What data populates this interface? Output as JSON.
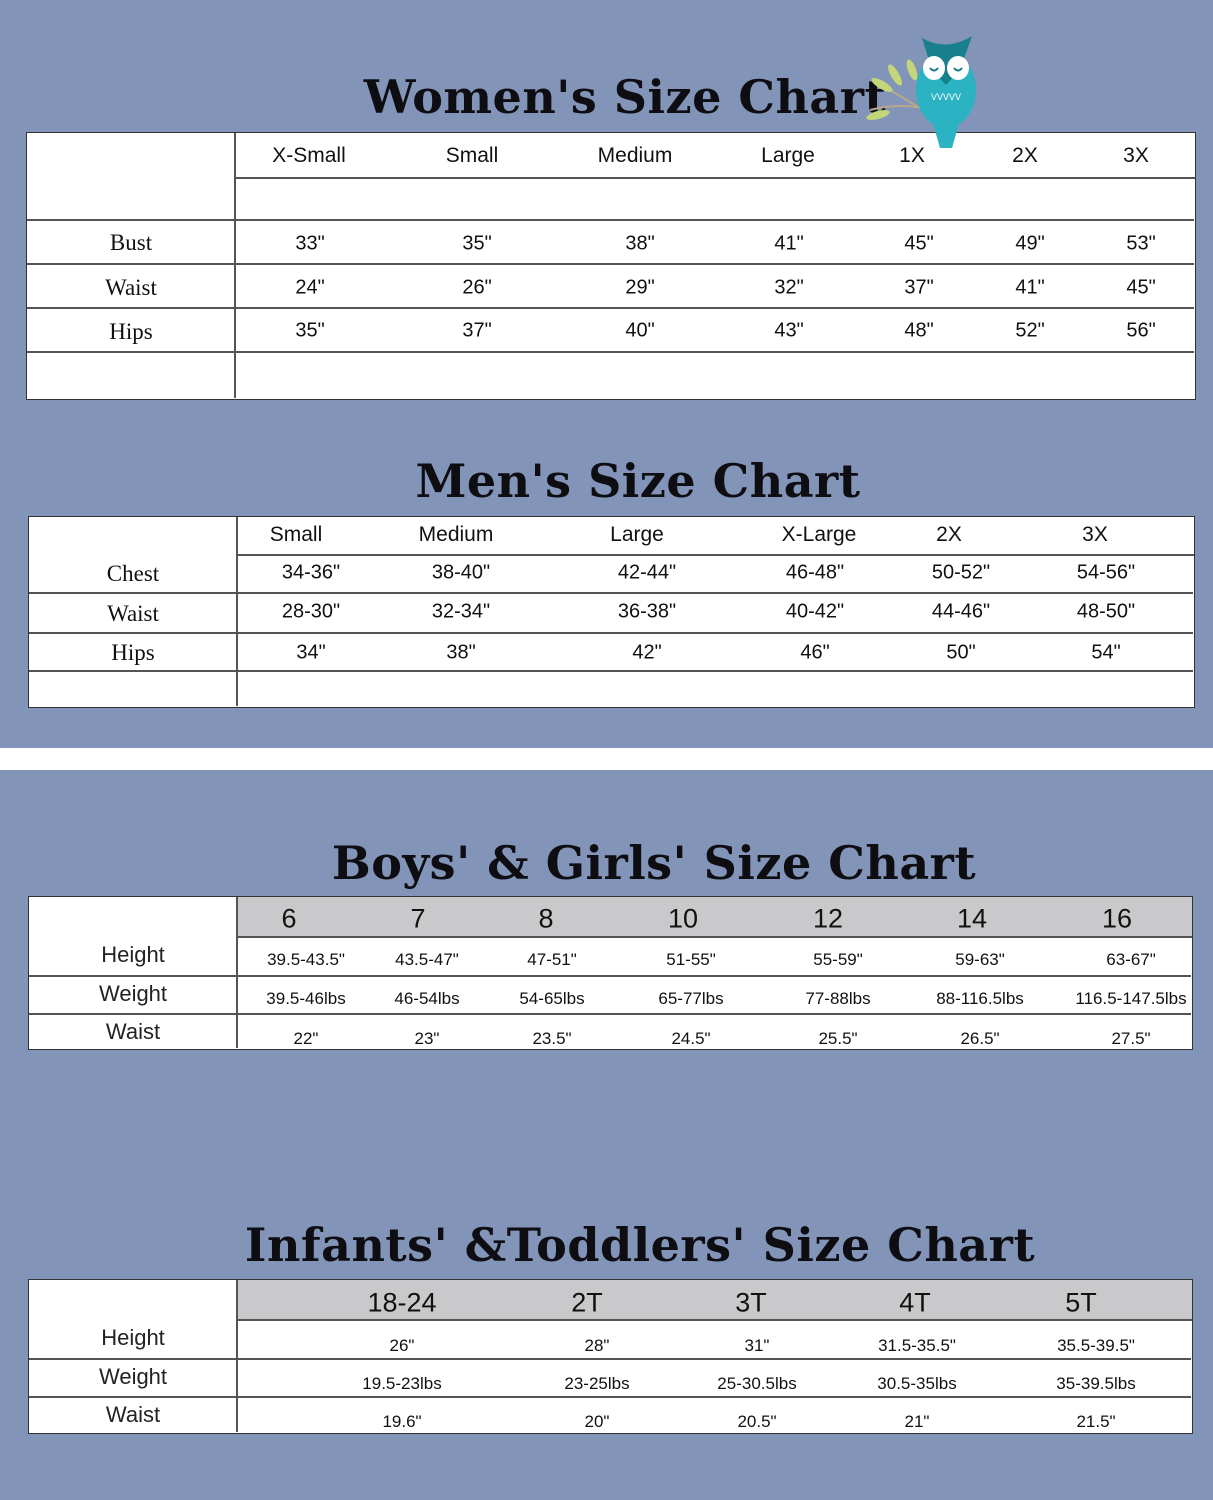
{
  "women": {
    "title": "Women's Size Chart",
    "logo": "owl-on-branch",
    "columns": [
      "X-Small",
      "Small",
      "Medium",
      "Large",
      "1X",
      "2X",
      "3X"
    ],
    "rows": [
      {
        "label": "Bust",
        "values": [
          "33\"",
          "35\"",
          "38\"",
          "41\"",
          "45\"",
          "49\"",
          "53\""
        ]
      },
      {
        "label": "Waist",
        "values": [
          "24\"",
          "26\"",
          "29\"",
          "32\"",
          "37\"",
          "41\"",
          "45\""
        ]
      },
      {
        "label": "Hips",
        "values": [
          "35\"",
          "37\"",
          "40\"",
          "43\"",
          "48\"",
          "52\"",
          "56\""
        ]
      }
    ]
  },
  "men": {
    "title": "Men's Size Chart",
    "columns": [
      "Small",
      "Medium",
      "Large",
      "X-Large",
      "2X",
      "3X"
    ],
    "rows": [
      {
        "label": "Chest",
        "values": [
          "34-36\"",
          "38-40\"",
          "42-44\"",
          "46-48\"",
          "50-52\"",
          "54-56\""
        ]
      },
      {
        "label": "Waist",
        "values": [
          "28-30\"",
          "32-34\"",
          "36-38\"",
          "40-42\"",
          "44-46\"",
          "48-50\""
        ]
      },
      {
        "label": "Hips",
        "values": [
          "34\"",
          "38\"",
          "42\"",
          "46\"",
          "50\"",
          "54\""
        ]
      }
    ]
  },
  "kids": {
    "title": "Boys' & Girls' Size Chart",
    "columns": [
      "6",
      "7",
      "8",
      "10",
      "12",
      "14",
      "16"
    ],
    "rows": [
      {
        "label": "Height",
        "values": [
          "39.5-43.5\"",
          "43.5-47\"",
          "47-51\"",
          "51-55\"",
          "55-59\"",
          "59-63\"",
          "63-67\""
        ]
      },
      {
        "label": "Weight",
        "values": [
          "39.5-46lbs",
          "46-54lbs",
          "54-65lbs",
          "65-77lbs",
          "77-88lbs",
          "88-116.5lbs",
          "116.5-147.5lbs"
        ]
      },
      {
        "label": "Waist",
        "values": [
          "22\"",
          "23\"",
          "23.5\"",
          "24.5\"",
          "25.5\"",
          "26.5\"",
          "27.5\""
        ]
      }
    ]
  },
  "infants": {
    "title": "Infants' &Toddlers' Size Chart",
    "columns": [
      "18-24",
      "2T",
      "3T",
      "4T",
      "5T"
    ],
    "rows": [
      {
        "label": "Height",
        "values": [
          "26\"",
          "28\"",
          "31\"",
          "31.5-35.5\"",
          "35.5-39.5\""
        ]
      },
      {
        "label": "Weight",
        "values": [
          "19.5-23lbs",
          "23-25lbs",
          "25-30.5lbs",
          "30.5-35lbs",
          "35-39.5lbs"
        ]
      },
      {
        "label": "Waist",
        "values": [
          "19.6\"",
          "20\"",
          "20.5\"",
          "21\"",
          "21.5\""
        ]
      }
    ]
  },
  "colors": {
    "background": "#8294b8",
    "header_gray": "#c9c9cc",
    "owl": "#2bb3c4"
  }
}
